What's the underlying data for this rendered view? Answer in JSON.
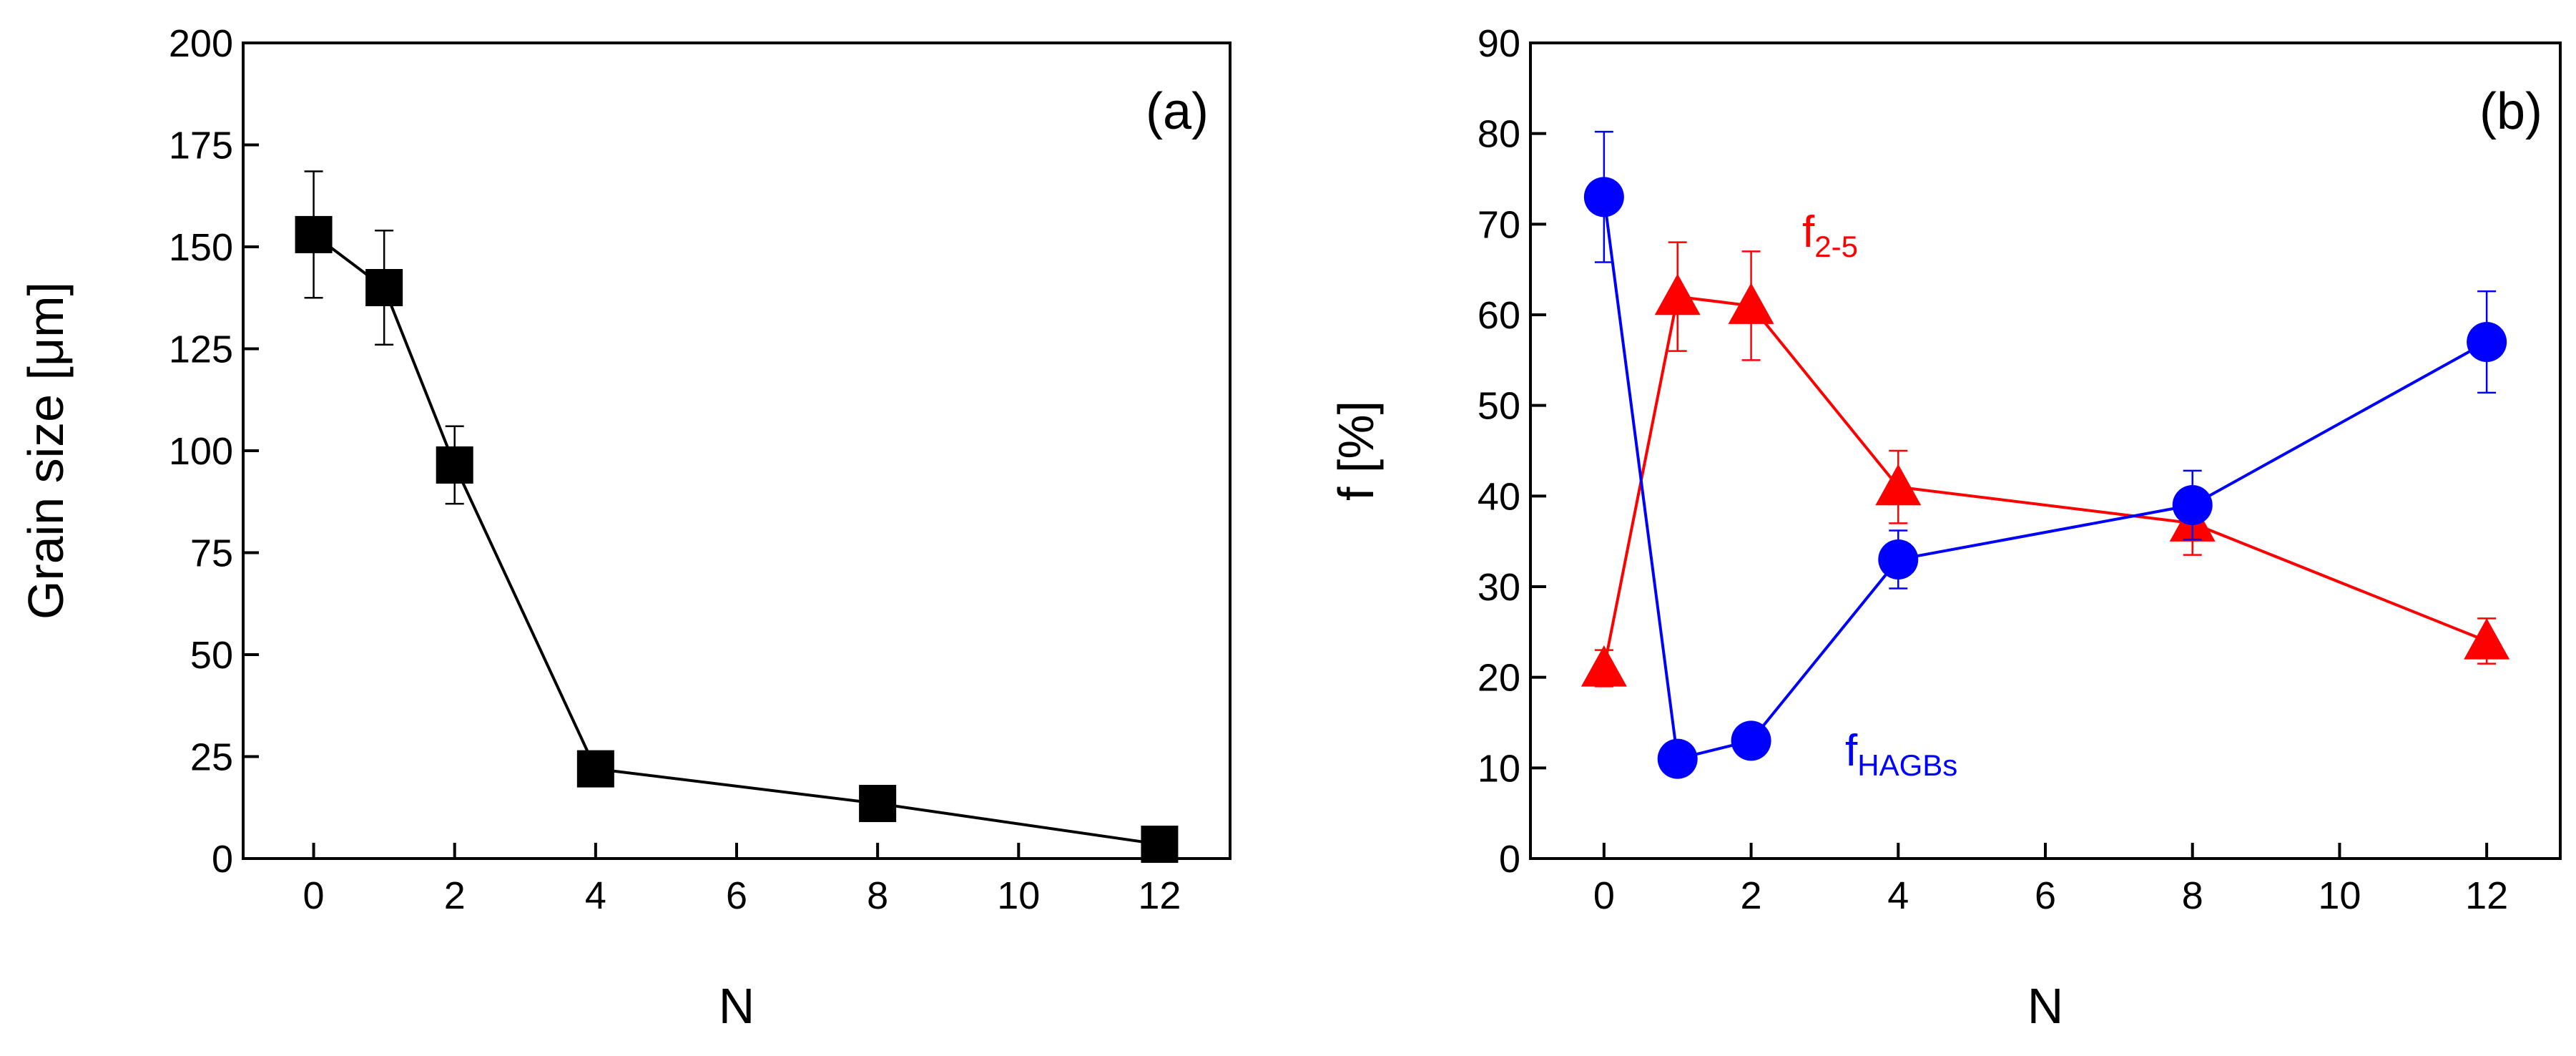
{
  "chart_data": [
    {
      "type": "line",
      "panel_label": "(a)",
      "title": "",
      "xlabel": "N",
      "ylabel": "Grain size  [μm]",
      "xlim": [
        -1,
        13
      ],
      "ylim": [
        0,
        200
      ],
      "xticks": [
        0,
        2,
        4,
        6,
        8,
        10,
        12
      ],
      "yticks": [
        0,
        25,
        50,
        75,
        100,
        125,
        150,
        175,
        200
      ],
      "grid": false,
      "series": [
        {
          "name": "Grain size",
          "color": "#000000",
          "marker": "square",
          "x": [
            0,
            1,
            2,
            4,
            8,
            12
          ],
          "values": [
            153,
            140,
            96.5,
            22,
            13.5,
            3.5
          ],
          "errors": [
            15.5,
            14,
            9.5,
            1.5,
            1.5,
            1
          ]
        }
      ]
    },
    {
      "type": "line",
      "panel_label": "(b)",
      "title": "",
      "xlabel": "N",
      "ylabel": "f [%]",
      "xlim": [
        -1,
        13
      ],
      "ylim": [
        0,
        90
      ],
      "xticks": [
        0,
        2,
        4,
        6,
        8,
        10,
        12
      ],
      "yticks": [
        0,
        10,
        20,
        30,
        40,
        50,
        60,
        70,
        80,
        90
      ],
      "grid": false,
      "series": [
        {
          "name": "f2-5",
          "label_main": "f",
          "label_sub": "2-5",
          "color": "#ff0000",
          "marker": "triangle",
          "x": [
            0,
            1,
            2,
            4,
            8,
            12
          ],
          "values": [
            21,
            62,
            61,
            41,
            37,
            24
          ],
          "errors": [
            2,
            6,
            6,
            4,
            3.5,
            2.5
          ]
        },
        {
          "name": "fHAGBs",
          "label_main": "f",
          "label_sub": "HAGBs",
          "color": "#0000ff",
          "marker": "circle",
          "x": [
            0,
            1,
            2,
            4,
            8,
            12
          ],
          "values": [
            73,
            11,
            13,
            33,
            39,
            57
          ],
          "errors": [
            7.2,
            0.6,
            0.6,
            3.2,
            3.8,
            5.6
          ]
        }
      ]
    }
  ]
}
